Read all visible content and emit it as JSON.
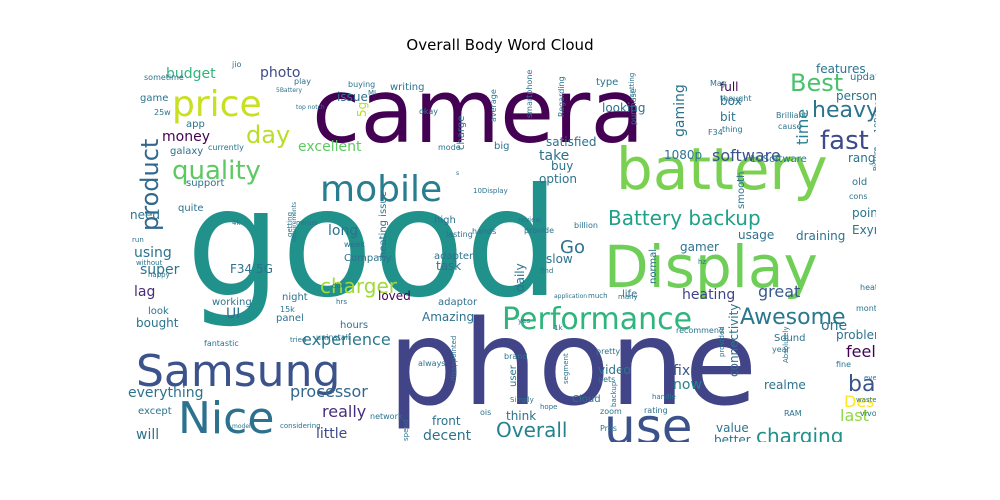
{
  "chart_data": {
    "type": "wordcloud",
    "title": "Overall Body Word Cloud",
    "words": [
      {
        "text": "good",
        "color": "#21918c",
        "weight": 100
      },
      {
        "text": "phone",
        "color": "#414487",
        "weight": 88
      },
      {
        "text": "camera",
        "color": "#440154",
        "weight": 80
      },
      {
        "text": "battery",
        "color": "#7ad151",
        "weight": 50
      },
      {
        "text": "Display",
        "color": "#6ece58",
        "weight": 48
      },
      {
        "text": "Samsung",
        "color": "#3b528b",
        "weight": 38
      },
      {
        "text": "use",
        "color": "#3b528b",
        "weight": 36
      },
      {
        "text": "Nice",
        "color": "#2c728e",
        "weight": 36
      },
      {
        "text": "mobile",
        "color": "#287d8e",
        "weight": 30
      },
      {
        "text": "price",
        "color": "#c8e020",
        "weight": 30
      },
      {
        "text": "Performance",
        "color": "#2fb47c",
        "weight": 24
      },
      {
        "text": "quality",
        "color": "#5ec962",
        "weight": 20
      },
      {
        "text": "fast",
        "color": "#3e4a89",
        "weight": 19
      },
      {
        "text": "day",
        "color": "#b8de29",
        "weight": 19
      },
      {
        "text": "product",
        "color": "#31688e",
        "weight": 18
      },
      {
        "text": "Best",
        "color": "#4ac16d",
        "weight": 18
      },
      {
        "text": "heavy",
        "color": "#2c738e",
        "weight": 17
      },
      {
        "text": "Battery backup",
        "color": "#1fa088",
        "weight": 17
      },
      {
        "text": "back",
        "color": "#39558c",
        "weight": 17
      },
      {
        "text": "Awesome",
        "color": "#2a788e",
        "weight": 17
      },
      {
        "text": "charger",
        "color": "#a0da39",
        "weight": 15
      },
      {
        "text": "Go",
        "color": "#2c738e",
        "weight": 15
      },
      {
        "text": "charging",
        "color": "#21918c",
        "weight": 15
      },
      {
        "text": "Overall",
        "color": "#26828e",
        "weight": 15
      },
      {
        "text": "software",
        "color": "#3b528b",
        "weight": 13
      },
      {
        "text": "experience",
        "color": "#2a788e",
        "weight": 13
      },
      {
        "text": "processor",
        "color": "#31688e",
        "weight": 13
      },
      {
        "text": "Design",
        "color": "#fde725",
        "weight": 13
      },
      {
        "text": "heating",
        "color": "#404387",
        "weight": 11
      },
      {
        "text": "feel",
        "color": "#440154",
        "weight": 11
      },
      {
        "text": "really",
        "color": "#472d7b",
        "weight": 11
      },
      {
        "text": "last",
        "color": "#8fd744",
        "weight": 11
      },
      {
        "text": "great",
        "color": "#375a8c",
        "weight": 11
      },
      {
        "text": "gaming",
        "color": "#2c738e",
        "weight": 11
      },
      {
        "text": "time",
        "color": "#26828e",
        "weight": 11
      },
      {
        "text": "budget",
        "color": "#2fb47c",
        "weight": 10
      },
      {
        "text": "photo",
        "color": "#3e4a89",
        "weight": 10
      },
      {
        "text": "money",
        "color": "#440154",
        "weight": 10
      },
      {
        "text": "excellent",
        "color": "#5ec962",
        "weight": 10
      },
      {
        "text": "take",
        "color": "#2c738e",
        "weight": 10
      },
      {
        "text": "using",
        "color": "#2c738e",
        "weight": 10
      },
      {
        "text": "super",
        "color": "#2c738e",
        "weight": 10
      },
      {
        "text": "lag",
        "color": "#472d7b",
        "weight": 10
      },
      {
        "text": "fix",
        "color": "#38588c",
        "weight": 10
      },
      {
        "text": "now",
        "color": "#25838e",
        "weight": 10
      },
      {
        "text": "decent",
        "color": "#2c738e",
        "weight": 10
      },
      {
        "text": "little",
        "color": "#3e4a89",
        "weight": 10
      },
      {
        "text": "will",
        "color": "#2c738e",
        "weight": 10
      },
      {
        "text": "everything",
        "color": "#2c738e",
        "weight": 10
      },
      {
        "text": "one",
        "color": "#2c738e",
        "weight": 10
      },
      {
        "text": "loved",
        "color": "#440154",
        "weight": 9
      },
      {
        "text": "long",
        "color": "#2c738e",
        "weight": 9
      },
      {
        "text": "issue",
        "color": "#2c738e",
        "weight": 9
      },
      {
        "text": "5g",
        "color": "#b8de29",
        "weight": 9
      },
      {
        "text": "full",
        "color": "#440154",
        "weight": 9
      },
      {
        "text": "features",
        "color": "#2c738e",
        "weight": 8
      },
      {
        "text": "range",
        "color": "#2c738e",
        "weight": 8
      },
      {
        "text": "usage",
        "color": "#2c738e",
        "weight": 8
      },
      {
        "text": "point",
        "color": "#2c738e",
        "weight": 8
      },
      {
        "text": "gamer",
        "color": "#2c738e",
        "weight": 8
      },
      {
        "text": "draining",
        "color": "#2c738e",
        "weight": 8
      },
      {
        "text": "Exynos",
        "color": "#2c738e",
        "weight": 8
      },
      {
        "text": "problem",
        "color": "#2c738e",
        "weight": 8
      },
      {
        "text": "video",
        "color": "#2c738e",
        "weight": 8
      },
      {
        "text": "value",
        "color": "#2c738e",
        "weight": 8
      },
      {
        "text": "better",
        "color": "#2c738e",
        "weight": 8
      },
      {
        "text": "realme",
        "color": "#2c738e",
        "weight": 8
      },
      {
        "text": "connectivity",
        "color": "#2c738e",
        "weight": 8
      },
      {
        "text": "front",
        "color": "#2c738e",
        "weight": 8
      },
      {
        "text": "think",
        "color": "#2c738e",
        "weight": 8
      },
      {
        "text": "Amazing",
        "color": "#2c738e",
        "weight": 8
      },
      {
        "text": "hours",
        "color": "#2c738e",
        "weight": 7
      },
      {
        "text": "panel",
        "color": "#2c738e",
        "weight": 7
      },
      {
        "text": "UI",
        "color": "#2c738e",
        "weight": 7
      },
      {
        "text": "working",
        "color": "#2c738e",
        "weight": 7
      },
      {
        "text": "night",
        "color": "#2c738e",
        "weight": 7
      },
      {
        "text": "bought",
        "color": "#2c738e",
        "weight": 7
      },
      {
        "text": "look",
        "color": "#2c738e",
        "weight": 7
      },
      {
        "text": "F34 5G",
        "color": "#2c738e",
        "weight": 7
      },
      {
        "text": "need",
        "color": "#2c738e",
        "weight": 7
      },
      {
        "text": "game",
        "color": "#2c738e",
        "weight": 7
      },
      {
        "text": "app",
        "color": "#2c738e",
        "weight": 7
      },
      {
        "text": "galaxy",
        "color": "#2c738e",
        "weight": 7
      },
      {
        "text": "support",
        "color": "#2c738e",
        "weight": 7
      },
      {
        "text": "quite",
        "color": "#2c738e",
        "weight": 7
      },
      {
        "text": "option",
        "color": "#2c738e",
        "weight": 7
      },
      {
        "text": "buy",
        "color": "#2c738e",
        "weight": 7
      },
      {
        "text": "satisfied",
        "color": "#2c738e",
        "weight": 7
      },
      {
        "text": "big",
        "color": "#2c738e",
        "weight": 7
      },
      {
        "text": "charge",
        "color": "#2c738e",
        "weight": 7
      },
      {
        "text": "1080p",
        "color": "#2c738e",
        "weight": 7
      },
      {
        "text": "looking",
        "color": "#2c738e",
        "weight": 7
      },
      {
        "text": "bit",
        "color": "#2c738e",
        "weight": 7
      },
      {
        "text": "box",
        "color": "#2c738e",
        "weight": 7
      },
      {
        "text": "person",
        "color": "#2c738e",
        "weight": 7
      },
      {
        "text": "10Software",
        "color": "#2c738e",
        "weight": 6
      },
      {
        "text": "heating issue",
        "color": "#2c738e",
        "weight": 7
      },
      {
        "text": "task",
        "color": "#2c738e",
        "weight": 7
      },
      {
        "text": "slow",
        "color": "#2c738e",
        "weight": 7
      },
      {
        "text": "daily",
        "color": "#2c738e",
        "weight": 7
      },
      {
        "text": "high",
        "color": "#2c738e",
        "weight": 6
      },
      {
        "text": "adapter",
        "color": "#2c738e",
        "weight": 6
      },
      {
        "text": "adaptor",
        "color": "#2c738e",
        "weight": 6
      },
      {
        "text": "Company",
        "color": "#2c738e",
        "weight": 6
      },
      {
        "text": "smooth",
        "color": "#2c738e",
        "weight": 6
      },
      {
        "text": "normal",
        "color": "#2c738e",
        "weight": 6
      },
      {
        "text": "recommend",
        "color": "#2c738e",
        "weight": 6
      },
      {
        "text": "life",
        "color": "#2c738e",
        "weight": 6
      },
      {
        "text": "Sound",
        "color": "#2c738e",
        "weight": 6
      },
      {
        "text": "fine",
        "color": "#2c738e",
        "weight": 6
      },
      {
        "text": "month",
        "color": "#2c738e",
        "weight": 6
      },
      {
        "text": "heats",
        "color": "#2c738e",
        "weight": 6
      },
      {
        "text": "old",
        "color": "#2c738e",
        "weight": 6
      },
      {
        "text": "cons",
        "color": "#2c738e",
        "weight": 6
      },
      {
        "text": "update",
        "color": "#2c738e",
        "weight": 6
      },
      {
        "text": "writing",
        "color": "#2c738e",
        "weight": 6
      },
      {
        "text": "buying",
        "color": "#2c738e",
        "weight": 6
      },
      {
        "text": "type",
        "color": "#2c738e",
        "weight": 6
      },
      {
        "text": "okay",
        "color": "#2c738e",
        "weight": 6
      },
      {
        "text": "smartphone",
        "color": "#2c738e",
        "weight": 6
      },
      {
        "text": "average",
        "color": "#2c738e",
        "weight": 6
      },
      {
        "text": "Regarding",
        "color": "#2c738e",
        "weight": 6
      },
      {
        "text": "purchase",
        "color": "#2c738e",
        "weight": 6
      },
      {
        "text": "thing",
        "color": "#2c738e",
        "weight": 6
      },
      {
        "text": "F34",
        "color": "#2c738e",
        "weight": 6
      },
      {
        "text": "May",
        "color": "#2c738e",
        "weight": 6
      },
      {
        "text": "thought",
        "color": "#2c738e",
        "weight": 6
      },
      {
        "text": "Brilliant",
        "color": "#2c738e",
        "weight": 6
      },
      {
        "text": "cause",
        "color": "#2c738e",
        "weight": 6
      },
      {
        "text": "10Battery",
        "color": "#2c738e",
        "weight": 6
      },
      {
        "text": "mode",
        "color": "#2c738e",
        "weight": 6
      },
      {
        "text": "currently",
        "color": "#2c738e",
        "weight": 6
      },
      {
        "text": "sometime",
        "color": "#2c738e",
        "weight": 6
      },
      {
        "text": "jio",
        "color": "#2c738e",
        "weight": 6
      },
      {
        "text": "play",
        "color": "#2c738e",
        "weight": 6
      },
      {
        "text": "5Battery",
        "color": "#2c738e",
        "weight": 5
      },
      {
        "text": "top notch",
        "color": "#2c738e",
        "weight": 5
      },
      {
        "text": "25w",
        "color": "#2c738e",
        "weight": 6
      },
      {
        "text": "Picture",
        "color": "#2c738e",
        "weight": 5
      },
      {
        "text": "setting",
        "color": "#2c738e",
        "weight": 5
      },
      {
        "text": "10Display",
        "color": "#2c738e",
        "weight": 5
      },
      {
        "text": "hands",
        "color": "#2c738e",
        "weight": 5
      },
      {
        "text": "review",
        "color": "#2c738e",
        "weight": 5
      },
      {
        "text": "provide",
        "color": "#2c738e",
        "weight": 5
      },
      {
        "text": "billion",
        "color": "#2c738e",
        "weight": 5
      },
      {
        "text": "lasting",
        "color": "#2c738e",
        "weight": 5
      },
      {
        "text": "week",
        "color": "#2c738e",
        "weight": 5
      },
      {
        "text": "minus",
        "color": "#2c738e",
        "weight": 5
      },
      {
        "text": "getting",
        "color": "#2c738e",
        "weight": 5
      },
      {
        "text": "requirements",
        "color": "#2c738e",
        "weight": 5
      },
      {
        "text": "4k",
        "color": "#2c738e",
        "weight": 5
      },
      {
        "text": "run",
        "color": "#2c738e",
        "weight": 5
      },
      {
        "text": "without",
        "color": "#2c738e",
        "weight": 5
      },
      {
        "text": "happy",
        "color": "#2c738e",
        "weight": 5
      },
      {
        "text": "due",
        "color": "#2c738e",
        "weight": 5
      },
      {
        "text": "hrs",
        "color": "#2c738e",
        "weight": 5
      },
      {
        "text": "15k",
        "color": "#2c738e",
        "weight": 5
      },
      {
        "text": "tried",
        "color": "#2c738e",
        "weight": 5
      },
      {
        "text": "uninstall",
        "color": "#2c738e",
        "weight": 5
      },
      {
        "text": "fantastic",
        "color": "#2c738e",
        "weight": 5
      },
      {
        "text": "except",
        "color": "#2c738e",
        "weight": 6
      },
      {
        "text": "considering",
        "color": "#2c738e",
        "weight": 5
      },
      {
        "text": "network",
        "color": "#2c738e",
        "weight": 5
      },
      {
        "text": "model",
        "color": "#2c738e",
        "weight": 4
      },
      {
        "text": "spend",
        "color": "#2c738e",
        "weight": 5
      },
      {
        "text": "ois",
        "color": "#2c738e",
        "weight": 5
      },
      {
        "text": "Simply",
        "color": "#2c738e",
        "weight": 5
      },
      {
        "text": "hope",
        "color": "#2c738e",
        "weight": 5
      },
      {
        "text": "disappointed",
        "color": "#2c738e",
        "weight": 5
      },
      {
        "text": "always",
        "color": "#2c738e",
        "weight": 5
      },
      {
        "text": "user",
        "color": "#2c738e",
        "weight": 6
      },
      {
        "text": "brand",
        "color": "#2c738e",
        "weight": 5
      },
      {
        "text": "pretty",
        "color": "#2c738e",
        "weight": 5
      },
      {
        "text": "segment",
        "color": "#2c738e",
        "weight": 5
      },
      {
        "text": "gets",
        "color": "#2c738e",
        "weight": 5
      },
      {
        "text": "Cloud",
        "color": "#2c738e",
        "weight": 6
      },
      {
        "text": "zoom",
        "color": "#2c738e",
        "weight": 5
      },
      {
        "text": "Pros",
        "color": "#2c738e",
        "weight": 5
      },
      {
        "text": "backup",
        "color": "#2c738e",
        "weight": 5
      },
      {
        "text": "rating",
        "color": "#2c738e",
        "weight": 5
      },
      {
        "text": "handle",
        "color": "#2c738e",
        "weight": 5
      },
      {
        "text": "provided",
        "color": "#2c738e",
        "weight": 5
      },
      {
        "text": "RAM",
        "color": "#2c738e",
        "weight": 5
      },
      {
        "text": "year",
        "color": "#2c738e",
        "weight": 5
      },
      {
        "text": "Absolutely",
        "color": "#2c738e",
        "weight": 5
      },
      {
        "text": "vivo",
        "color": "#2c738e",
        "weight": 5
      },
      {
        "text": "waste",
        "color": "#2c738e",
        "weight": 5
      },
      {
        "text": "even",
        "color": "#2c738e",
        "weight": 5
      },
      {
        "text": "much",
        "color": "#2c738e",
        "weight": 5
      },
      {
        "text": "many",
        "color": "#2c738e",
        "weight": 5
      },
      {
        "text": "application",
        "color": "#2c738e",
        "weight": 4
      },
      {
        "text": "find",
        "color": "#2c738e",
        "weight": 5
      },
      {
        "text": "1k",
        "color": "#2c738e",
        "weight": 5
      },
      {
        "text": "yes",
        "color": "#2c738e",
        "weight": 5
      },
      {
        "text": "hz",
        "color": "#2c738e",
        "weight": 5
      },
      {
        "text": "non",
        "color": "#2c738e",
        "weight": 5
      },
      {
        "text": "MI",
        "color": "#2c738e",
        "weight": 5
      },
      {
        "text": "s",
        "color": "#2c738e",
        "weight": 4
      }
    ]
  }
}
